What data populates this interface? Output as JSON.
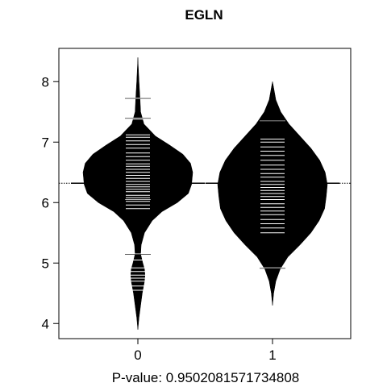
{
  "chart_data": {
    "type": "beanplot",
    "title": "EGLN",
    "xlabel": "P-value: 0.9502081571734808",
    "ylabel": "",
    "categories": [
      "0",
      "1"
    ],
    "ylim": [
      3.75,
      8.55
    ],
    "y_ticks": [
      4,
      5,
      6,
      7,
      8
    ],
    "y_tick_labels": [
      "4",
      "5",
      "6",
      "7",
      "8"
    ],
    "overall_mean": 6.32,
    "groups": [
      {
        "name": "0",
        "mean": 6.32,
        "density": [
          [
            3.9,
            0.0
          ],
          [
            4.1,
            0.02
          ],
          [
            4.3,
            0.05
          ],
          [
            4.5,
            0.08
          ],
          [
            4.7,
            0.12
          ],
          [
            4.8,
            0.13
          ],
          [
            4.9,
            0.12
          ],
          [
            5.0,
            0.09
          ],
          [
            5.15,
            0.05
          ],
          [
            5.3,
            0.06
          ],
          [
            5.5,
            0.12
          ],
          [
            5.7,
            0.26
          ],
          [
            5.85,
            0.44
          ],
          [
            6.0,
            0.72
          ],
          [
            6.15,
            0.92
          ],
          [
            6.3,
            0.98
          ],
          [
            6.5,
            1.0
          ],
          [
            6.65,
            0.96
          ],
          [
            6.8,
            0.82
          ],
          [
            6.95,
            0.58
          ],
          [
            7.1,
            0.32
          ],
          [
            7.3,
            0.11
          ],
          [
            7.5,
            0.05
          ],
          [
            7.7,
            0.04
          ],
          [
            8.0,
            0.02
          ],
          [
            8.3,
            0.005
          ],
          [
            8.4,
            0.0
          ]
        ],
        "lines": [
          4.55,
          4.62,
          4.7,
          4.75,
          4.8,
          4.86,
          4.92,
          5.05,
          5.15,
          5.9,
          5.96,
          6.02,
          6.05,
          6.08,
          6.12,
          6.18,
          6.22,
          6.26,
          6.3,
          6.35,
          6.4,
          6.45,
          6.5,
          6.55,
          6.6,
          6.64,
          6.7,
          6.76,
          6.82,
          6.9,
          6.96,
          7.02,
          7.08,
          7.12,
          7.38,
          7.72
        ],
        "long_lines": [
          5.15,
          6.05,
          7.4,
          7.73
        ]
      },
      {
        "name": "1",
        "mean": 6.32,
        "density": [
          [
            4.3,
            0.0
          ],
          [
            4.5,
            0.02
          ],
          [
            4.7,
            0.06
          ],
          [
            4.9,
            0.14
          ],
          [
            5.1,
            0.28
          ],
          [
            5.3,
            0.5
          ],
          [
            5.5,
            0.7
          ],
          [
            5.7,
            0.85
          ],
          [
            5.9,
            0.95
          ],
          [
            6.1,
            0.98
          ],
          [
            6.3,
            1.0
          ],
          [
            6.5,
            0.96
          ],
          [
            6.7,
            0.86
          ],
          [
            6.9,
            0.7
          ],
          [
            7.1,
            0.5
          ],
          [
            7.3,
            0.3
          ],
          [
            7.5,
            0.15
          ],
          [
            7.7,
            0.06
          ],
          [
            7.9,
            0.02
          ],
          [
            8.0,
            0.0
          ]
        ],
        "lines": [
          4.92,
          5.5,
          5.58,
          5.65,
          5.72,
          5.8,
          5.86,
          5.92,
          5.98,
          6.05,
          6.1,
          6.15,
          6.2,
          6.25,
          6.3,
          6.35,
          6.42,
          6.48,
          6.55,
          6.62,
          6.7,
          6.78,
          6.85,
          6.92,
          7.0,
          7.05
        ],
        "long_lines": [
          4.92,
          7.35
        ]
      }
    ]
  }
}
